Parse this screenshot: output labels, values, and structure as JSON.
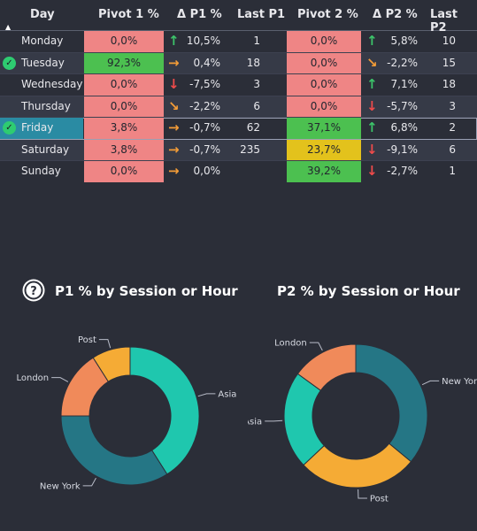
{
  "header": {
    "day": "Day",
    "pivot1": "Pivot 1 %",
    "delta_p1": "Δ P1 %",
    "last_p1": "Last P1",
    "pivot2": "Pivot 2 %",
    "delta_p2": "Δ P2 %",
    "last_p2": "Last P2"
  },
  "rows": [
    {
      "day": "Monday",
      "pivot1": "0,0%",
      "arrow1": "↑",
      "delta1": "10,5%",
      "last1": "1",
      "pivot2": "0,0%",
      "arrow2": "↑",
      "delta2": "5,8%",
      "last2": "10"
    },
    {
      "day": "Tuesday",
      "pivot1": "92,3%",
      "arrow1": "→",
      "delta1": "0,4%",
      "last1": "18",
      "pivot2": "0,0%",
      "arrow2": "↘",
      "delta2": "-2,2%",
      "last2": "15"
    },
    {
      "day": "Wednesday",
      "pivot1": "0,0%",
      "arrow1": "↓",
      "delta1": "-7,5%",
      "last1": "3",
      "pivot2": "0,0%",
      "arrow2": "↑",
      "delta2": "7,1%",
      "last2": "18"
    },
    {
      "day": "Thursday",
      "pivot1": "0,0%",
      "arrow1": "↘",
      "delta1": "-2,2%",
      "last1": "6",
      "pivot2": "0,0%",
      "arrow2": "↓",
      "delta2": "-5,7%",
      "last2": "3"
    },
    {
      "day": "Friday",
      "pivot1": "3,8%",
      "arrow1": "→",
      "delta1": "-0,7%",
      "last1": "62",
      "pivot2": "37,1%",
      "arrow2": "↑",
      "delta2": "6,8%",
      "last2": "2"
    },
    {
      "day": "Saturday",
      "pivot1": "3,8%",
      "arrow1": "→",
      "delta1": "-0,7%",
      "last1": "235",
      "pivot2": "23,7%",
      "arrow2": "↓",
      "delta2": "-9,1%",
      "last2": "6"
    },
    {
      "day": "Sunday",
      "pivot1": "0,0%",
      "arrow1": "→",
      "delta1": "0,0%",
      "last1": "",
      "pivot2": "39,2%",
      "arrow2": "↓",
      "delta2": "-2,7%",
      "last2": "1"
    }
  ],
  "help_icon": "question-mark",
  "help_icon_label": "?",
  "check_icon_label": "✓",
  "sort_icon_label": "▲",
  "colors": {
    "background": "#2b2e38",
    "red_cell": "#ef8585",
    "green_cell": "#4cc050",
    "yellow_cell": "#e3c21c",
    "asia": "#1fc7ae",
    "new_york": "#257685",
    "london": "#f08a5a",
    "post": "#f5ab35"
  },
  "chart_data": [
    {
      "type": "pie",
      "title": "P1 % by Session or Hour",
      "categories": [
        "Asia",
        "New York",
        "London",
        "Post"
      ],
      "values": [
        41,
        34,
        16,
        9
      ]
    },
    {
      "type": "pie",
      "title": "P2 % by Session or Hour",
      "categories": [
        "New York",
        "Post",
        "Asia",
        "London"
      ],
      "values": [
        36,
        27,
        22,
        15
      ]
    }
  ]
}
